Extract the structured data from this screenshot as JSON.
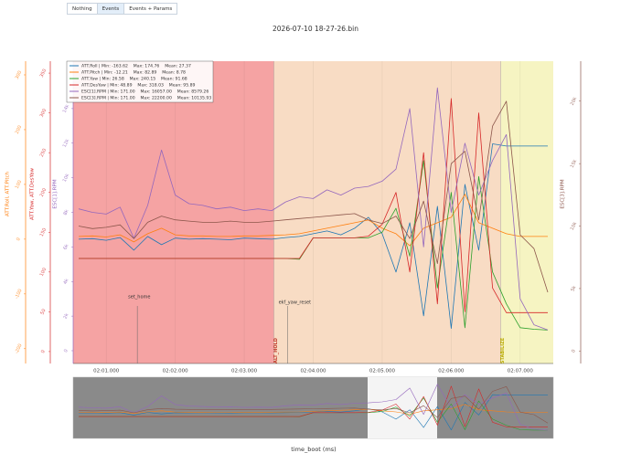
{
  "buttons": [
    "Nothing",
    "Events",
    "Events + Params"
  ],
  "active_button": 1,
  "chart_data": {
    "type": "line",
    "title": "2026-07-10 18-27-26.bin",
    "xlabel": "time_boot (ms)",
    "x": [
      120.6,
      120.8,
      121.0,
      121.2,
      121.4,
      121.6,
      121.8,
      122.0,
      122.2,
      122.4,
      122.6,
      122.8,
      123.0,
      123.2,
      123.4,
      123.6,
      123.8,
      124.0,
      124.2,
      124.4,
      124.6,
      124.8,
      125.0,
      125.2,
      125.4,
      125.6,
      125.8,
      126.0,
      126.2,
      126.4,
      126.6,
      126.8,
      127.0,
      127.2,
      127.4
    ],
    "xlim": [
      120.52,
      127.48
    ],
    "xticks": [
      {
        "value": 121,
        "label": "02:01.000"
      },
      {
        "value": 122,
        "label": "02:02.000"
      },
      {
        "value": 123,
        "label": "02:03.000"
      },
      {
        "value": 124,
        "label": "02:04.000"
      },
      {
        "value": 125,
        "label": "02:05.000"
      },
      {
        "value": 126,
        "label": "02:06.000"
      },
      {
        "value": 127,
        "label": "02:07.000"
      }
    ],
    "grid": true,
    "ylabel": "ATT.Roll, ATT.Pitch",
    "ycolor": "#ff7f0e",
    "ylim": [
      -227,
      325
    ],
    "yticks": [
      -200,
      -100,
      0,
      100,
      200,
      300
    ],
    "y2label": "ATT.Yaw, ATT.DesYaw",
    "y2color": "#d62728",
    "y2lim": [
      -15,
      365
    ],
    "y2ticks": [
      0,
      50,
      100,
      150,
      200,
      250,
      300,
      350
    ],
    "y3label": "ESC[1].RPM",
    "y3color": "#9467bd",
    "y3lim": [
      -740,
      16740
    ],
    "y3ticks": [
      0,
      {
        "value": 2000,
        "label": "2k"
      },
      {
        "value": 4000,
        "label": "4k"
      },
      {
        "value": 6000,
        "label": "6k"
      },
      {
        "value": 8000,
        "label": "8k"
      },
      {
        "value": 10000,
        "label": "10k"
      },
      {
        "value": 12000,
        "label": "12k"
      },
      {
        "value": 14000,
        "label": "14k"
      }
    ],
    "y4label": "ESC[3].RPM",
    "y4color": "#8c564b",
    "y4lim": [
      -1000,
      23200
    ],
    "y4ticks": [
      0,
      {
        "value": 5000,
        "label": "5k"
      },
      {
        "value": 10000,
        "label": "10k"
      },
      {
        "value": 15000,
        "label": "15k"
      },
      {
        "value": 20000,
        "label": "20k"
      }
    ],
    "mode_colors": [
      "#f5a3a3",
      "#f8dcc4",
      "#f6f4c2"
    ],
    "modes": [
      {
        "x": 123.43,
        "label": "ALT_HOLD"
      },
      {
        "x": 126.72,
        "label": "STABILIZE"
      }
    ],
    "events": [
      {
        "x": 121.45,
        "label": "set_home"
      },
      {
        "x": 123.63,
        "label": "ekf_yaw_reset"
      }
    ],
    "series": [
      {
        "name": "ATT.Roll | Min: -163.62    Max: 174.76    Mean: 27.37",
        "color": "#1f77b4",
        "axis": "y",
        "values": [
          0,
          1,
          -2,
          3,
          -20,
          5,
          -10,
          2,
          0,
          1,
          0,
          -1,
          2,
          1,
          0,
          3,
          5,
          10,
          15,
          8,
          20,
          40,
          10,
          -60,
          30,
          -140,
          60,
          -163,
          100,
          -20,
          174,
          170,
          170,
          170,
          170
        ]
      },
      {
        "name": "ATT.Pitch | Min: -12.21    Max: 82.89    Mean: 8.78",
        "color": "#ff7f0e",
        "axis": "y",
        "values": [
          5,
          6,
          4,
          8,
          -5,
          10,
          20,
          8,
          6,
          6,
          5,
          5,
          6,
          6,
          7,
          8,
          10,
          15,
          20,
          25,
          30,
          35,
          20,
          10,
          -12,
          20,
          30,
          40,
          82,
          30,
          20,
          10,
          5,
          5,
          5
        ]
      },
      {
        "name": "ATT.Yaw | Min: 26.58    Max: 240.15    Mean: 91.68",
        "color": "#2ca02c",
        "axis": "y2",
        "values": [
          117,
          117,
          117,
          117,
          117,
          117,
          117,
          117,
          117,
          117,
          117,
          117,
          117,
          117,
          117,
          117,
          116,
          143,
          143,
          143,
          143,
          143,
          150,
          180,
          120,
          240,
          80,
          200,
          30,
          220,
          100,
          60,
          30,
          28,
          27
        ]
      },
      {
        "name": "ATT.DesYaw | Min: 48.89    Max: 318.03    Mean: 95.89",
        "color": "#d62728",
        "axis": "y2",
        "values": [
          117,
          117,
          117,
          117,
          117,
          117,
          117,
          117,
          117,
          117,
          117,
          117,
          117,
          117,
          117,
          117,
          117,
          143,
          143,
          143,
          143,
          145,
          160,
          200,
          100,
          250,
          60,
          318,
          50,
          300,
          80,
          49,
          49,
          49,
          49
        ]
      },
      {
        "name": "ESC[1].RPM | Min: 171.00    Max: 16057.00    Mean: 8579.26",
        "color": "#9467bd",
        "axis": "y3",
        "values": [
          8200,
          8000,
          7900,
          8300,
          6500,
          8400,
          11600,
          9000,
          8500,
          8400,
          8200,
          8300,
          8100,
          8200,
          8100,
          8600,
          8900,
          8800,
          9300,
          9000,
          9400,
          9500,
          9800,
          10500,
          14000,
          6000,
          15200,
          8000,
          12000,
          9000,
          11000,
          12500,
          3000,
          1500,
          1200
        ]
      },
      {
        "name": "ESC[3].RPM | Min: 171.00    Max: 22200.00    Mean: 10135.93",
        "color": "#8c564b",
        "axis": "y4",
        "values": [
          10000,
          9800,
          9900,
          10100,
          9000,
          10300,
          10800,
          10500,
          10400,
          10300,
          10300,
          10400,
          10300,
          10300,
          10400,
          10500,
          10600,
          10700,
          10800,
          10900,
          11000,
          10500,
          10200,
          10800,
          9000,
          12000,
          7000,
          15000,
          16000,
          10500,
          18000,
          20000,
          9300,
          8200,
          4700
        ]
      }
    ]
  }
}
